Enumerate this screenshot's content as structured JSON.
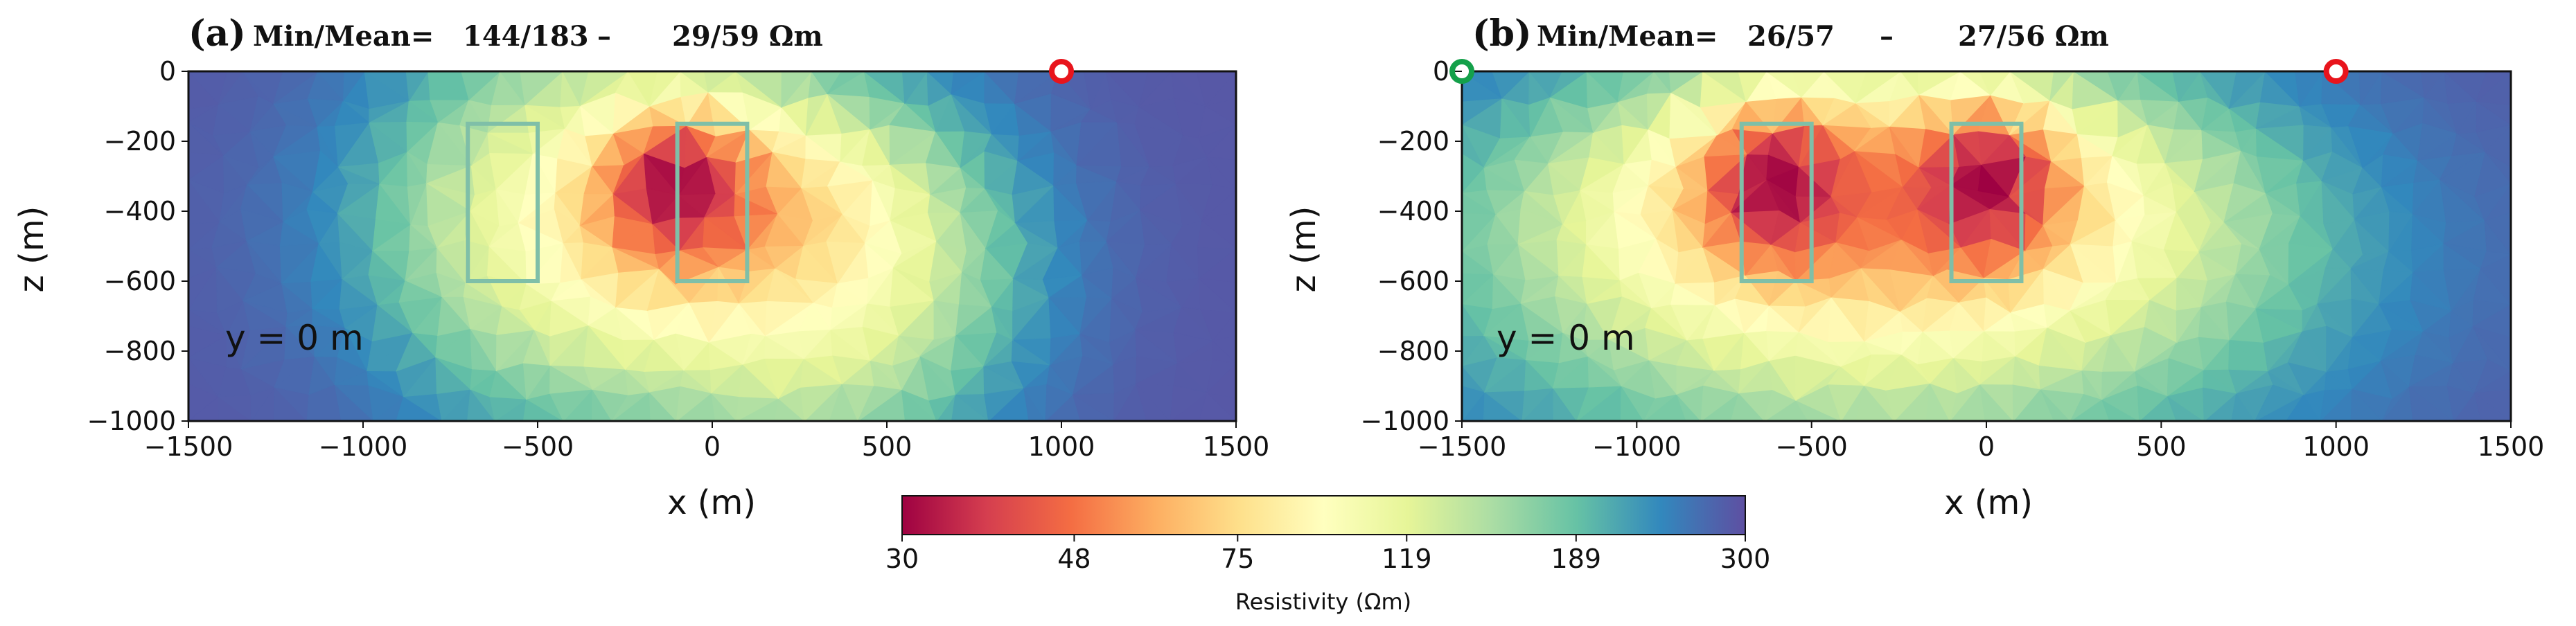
{
  "chart_data": {
    "type": "heatmap",
    "colorbar": {
      "label": "Resistivity (Ωm)",
      "scale": "log",
      "range": [
        30,
        300
      ],
      "ticks": [
        "30",
        "48",
        "75",
        "119",
        "189",
        "300"
      ],
      "colormap": [
        "#9e0142",
        "#d53e4f",
        "#f46d43",
        "#fdae61",
        "#fee08b",
        "#ffffbf",
        "#e6f598",
        "#abdda4",
        "#66c2a5",
        "#3288bd",
        "#5e4fa2"
      ]
    },
    "panels": [
      {
        "letter": "(a)",
        "stats_label": "Min/Mean=",
        "stats_1": "144/183",
        "dash": "–",
        "stats_2": "29/59 Ωm",
        "slice_label": "y = 0 m",
        "xlabel": "x (m)",
        "ylabel": "z (m)",
        "xlim": [
          -1500,
          1500
        ],
        "ylim": [
          -1000,
          0
        ],
        "xticks": [
          "−1500",
          "−1000",
          "−500",
          "0",
          "500",
          "1000",
          "1500"
        ],
        "yticks": [
          "0",
          "−200",
          "−400",
          "−600",
          "−800",
          "−1000"
        ],
        "background_resistivity": 290,
        "anomalies": [
          {
            "x": -100,
            "z": -330,
            "sx": 200,
            "sz": 190,
            "resistivity": 30
          },
          {
            "x": 30,
            "z": -420,
            "sx": 560,
            "sz": 330,
            "resistivity": 60
          },
          {
            "x": -200,
            "z": -450,
            "sx": 700,
            "sz": 520,
            "resistivity": 120
          },
          {
            "x": -450,
            "z": -400,
            "sx": 420,
            "sz": 520,
            "resistivity": 180
          },
          {
            "x": 300,
            "z": -700,
            "sx": 500,
            "sz": 420,
            "resistivity": 130
          }
        ],
        "blocks": [
          {
            "x1": -700,
            "x2": -500,
            "z1": -150,
            "z2": -600
          },
          {
            "x1": -100,
            "x2": 100,
            "z1": -150,
            "z2": -600
          }
        ],
        "markers": [
          {
            "x": 1000,
            "z": 0,
            "color": "#e8141c"
          }
        ]
      },
      {
        "letter": "(b)",
        "stats_label": "Min/Mean=",
        "stats_1": "26/57",
        "dash": "–",
        "stats_2": "27/56 Ωm",
        "slice_label": "y = 0 m",
        "xlabel": "x (m)",
        "ylabel": "z (m)",
        "xlim": [
          -1500,
          1500
        ],
        "ylim": [
          -1000,
          0
        ],
        "xticks": [
          "−1500",
          "−1000",
          "−500",
          "0",
          "500",
          "1000",
          "1500"
        ],
        "yticks": [
          "0",
          "−200",
          "−400",
          "−600",
          "−800",
          "−1000"
        ],
        "background_resistivity": 290,
        "anomalies": [
          {
            "x": -600,
            "z": -320,
            "sx": 190,
            "sz": 200,
            "resistivity": 30
          },
          {
            "x": 0,
            "z": -320,
            "sx": 190,
            "sz": 200,
            "resistivity": 30
          },
          {
            "x": -300,
            "z": -380,
            "sx": 700,
            "sz": 310,
            "resistivity": 50
          },
          {
            "x": -300,
            "z": -450,
            "sx": 1000,
            "sz": 470,
            "resistivity": 100
          },
          {
            "x": -300,
            "z": -650,
            "sx": 1100,
            "sz": 520,
            "resistivity": 150
          }
        ],
        "blocks": [
          {
            "x1": -700,
            "x2": -500,
            "z1": -150,
            "z2": -600
          },
          {
            "x1": -100,
            "x2": 100,
            "z1": -150,
            "z2": -600
          }
        ],
        "markers": [
          {
            "x": -1500,
            "z": 0,
            "color": "#14a04a"
          },
          {
            "x": 1000,
            "z": 0,
            "color": "#e8141c"
          }
        ]
      }
    ]
  }
}
